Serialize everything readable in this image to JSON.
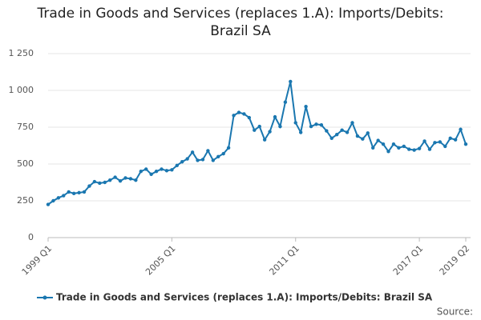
{
  "chart_data": {
    "type": "line",
    "title": "Trade in Goods and Services (replaces 1.A): Imports/Debits: Brazil SA",
    "categories": [
      "1999 Q1",
      null,
      null,
      null,
      null,
      null,
      null,
      null,
      null,
      null,
      null,
      null,
      null,
      null,
      null,
      null,
      null,
      null,
      null,
      null,
      null,
      null,
      null,
      null,
      "2005 Q1",
      null,
      null,
      null,
      null,
      null,
      null,
      null,
      null,
      null,
      null,
      null,
      null,
      null,
      null,
      null,
      null,
      null,
      null,
      null,
      null,
      null,
      null,
      null,
      "2011 Q1",
      null,
      null,
      null,
      null,
      null,
      null,
      null,
      null,
      null,
      null,
      null,
      null,
      null,
      null,
      null,
      null,
      null,
      null,
      null,
      null,
      null,
      null,
      null,
      "2017 Q1",
      null,
      null,
      null,
      null,
      null,
      null,
      null,
      null,
      "2019 Q2"
    ],
    "series": [
      {
        "name": "Trade in Goods and Services (replaces 1.A): Imports/Debits: Brazil SA",
        "color": "#1a77b0",
        "values": [
          225,
          250,
          270,
          285,
          310,
          300,
          305,
          310,
          350,
          380,
          370,
          375,
          390,
          410,
          385,
          405,
          400,
          390,
          450,
          465,
          430,
          450,
          465,
          455,
          460,
          490,
          515,
          535,
          580,
          525,
          530,
          590,
          525,
          550,
          570,
          610,
          830,
          850,
          840,
          815,
          730,
          755,
          665,
          720,
          820,
          755,
          920,
          1060,
          780,
          715,
          890,
          755,
          770,
          765,
          725,
          675,
          700,
          730,
          715,
          780,
          690,
          670,
          710,
          610,
          660,
          635,
          585,
          635,
          610,
          620,
          600,
          595,
          605,
          655,
          600,
          645,
          650,
          620,
          675,
          665,
          735,
          635
        ]
      }
    ],
    "ylim": [
      0,
      1250
    ],
    "yticks": [
      0,
      250,
      500,
      750,
      {
        "value": 1000,
        "label": "1 000"
      },
      {
        "value": 1250,
        "label": "1 250"
      }
    ],
    "grid": true,
    "source": "Source:"
  }
}
